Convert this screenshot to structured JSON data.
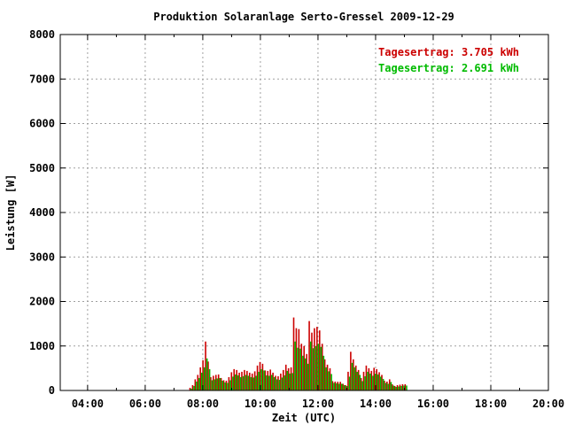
{
  "chart_data": {
    "type": "bar",
    "title": "Produktion Solaranlage Serto-Gressel 2009-12-29",
    "xlabel": "Zeit (UTC)",
    "ylabel": "Leistung [W]",
    "xlim": [
      3.05,
      20.0
    ],
    "ylim": [
      0,
      8000
    ],
    "xticks": [
      "04:00",
      "06:00",
      "08:00",
      "10:00",
      "12:00",
      "14:00",
      "16:00",
      "18:00",
      "20:00"
    ],
    "yticks": [
      "0",
      "1000",
      "2000",
      "3000",
      "4000",
      "5000",
      "6000",
      "7000",
      "8000"
    ],
    "grid": true,
    "legend_position": "top-right",
    "colors": {
      "series1": "#cc0000",
      "series2": "#00bb00",
      "grid": "#a0a0a0",
      "axis": "#000000"
    },
    "series": [
      {
        "name": "Tagesertrag: 3.705 kWh",
        "x": [
          7.55,
          7.64,
          7.73,
          7.82,
          7.91,
          8.0,
          8.09,
          8.18,
          8.27,
          8.36,
          8.45,
          8.54,
          8.63,
          8.72,
          8.81,
          8.9,
          8.99,
          9.08,
          9.17,
          9.26,
          9.35,
          9.44,
          9.53,
          9.62,
          9.71,
          9.8,
          9.89,
          9.98,
          10.07,
          10.16,
          10.25,
          10.34,
          10.43,
          10.52,
          10.61,
          10.7,
          10.79,
          10.88,
          10.97,
          11.06,
          11.15,
          11.24,
          11.33,
          11.42,
          11.51,
          11.6,
          11.69,
          11.78,
          11.87,
          11.96,
          12.05,
          12.14,
          12.23,
          12.32,
          12.41,
          12.5,
          12.59,
          12.68,
          12.77,
          12.86,
          12.95,
          13.04,
          13.13,
          13.22,
          13.31,
          13.4,
          13.49,
          13.58,
          13.67,
          13.76,
          13.85,
          13.94,
          14.03,
          14.12,
          14.21,
          14.3,
          14.39,
          14.48,
          14.57,
          14.66,
          14.75,
          14.84,
          14.93,
          15.02,
          15.11,
          15.2
        ],
        "values": [
          60,
          120,
          250,
          350,
          520,
          680,
          1100,
          650,
          300,
          330,
          350,
          360,
          280,
          230,
          220,
          300,
          410,
          480,
          460,
          400,
          420,
          460,
          440,
          400,
          380,
          430,
          560,
          640,
          600,
          450,
          440,
          470,
          400,
          330,
          320,
          380,
          460,
          580,
          500,
          520,
          1640,
          1400,
          1380,
          1050,
          1000,
          820,
          1560,
          1300,
          1400,
          1430,
          1350,
          1050,
          700,
          580,
          500,
          210,
          200,
          195,
          195,
          150,
          120,
          420,
          870,
          700,
          560,
          460,
          280,
          420,
          560,
          500,
          440,
          510,
          480,
          410,
          350,
          220,
          200,
          250,
          140,
          100,
          120,
          130,
          140,
          140,
          0,
          0
        ]
      },
      {
        "name": "Tagesertrag: 2.691 kWh",
        "x": [
          7.6,
          7.69,
          7.78,
          7.87,
          7.96,
          8.05,
          8.14,
          8.23,
          8.32,
          8.41,
          8.5,
          8.59,
          8.68,
          8.77,
          8.86,
          8.95,
          9.04,
          9.13,
          9.22,
          9.31,
          9.4,
          9.49,
          9.58,
          9.67,
          9.76,
          9.85,
          9.94,
          10.03,
          10.12,
          10.21,
          10.3,
          10.39,
          10.48,
          10.57,
          10.66,
          10.75,
          10.84,
          10.93,
          11.02,
          11.11,
          11.2,
          11.29,
          11.38,
          11.47,
          11.56,
          11.65,
          11.74,
          11.83,
          11.92,
          12.01,
          12.1,
          12.19,
          12.28,
          12.37,
          12.46,
          12.55,
          12.64,
          12.73,
          12.82,
          12.91,
          13.0,
          13.09,
          13.18,
          13.27,
          13.36,
          13.45,
          13.54,
          13.63,
          13.72,
          13.81,
          13.9,
          13.99,
          14.08,
          14.17,
          14.26,
          14.35,
          14.44,
          14.53,
          14.62,
          14.71,
          14.8,
          14.89,
          14.98,
          15.07,
          15.16,
          15.25
        ],
        "values": [
          40,
          100,
          200,
          280,
          400,
          520,
          720,
          480,
          230,
          250,
          270,
          280,
          220,
          180,
          170,
          230,
          310,
          360,
          340,
          300,
          320,
          350,
          330,
          300,
          290,
          330,
          420,
          480,
          450,
          340,
          330,
          350,
          300,
          250,
          240,
          290,
          340,
          440,
          380,
          390,
          1100,
          960,
          940,
          780,
          720,
          600,
          1100,
          950,
          1000,
          1050,
          980,
          780,
          520,
          430,
          370,
          170,
          160,
          150,
          150,
          120,
          100,
          310,
          620,
          520,
          420,
          350,
          210,
          320,
          420,
          380,
          330,
          380,
          360,
          310,
          260,
          170,
          150,
          190,
          110,
          80,
          90,
          100,
          110,
          110,
          0,
          0
        ]
      }
    ]
  }
}
